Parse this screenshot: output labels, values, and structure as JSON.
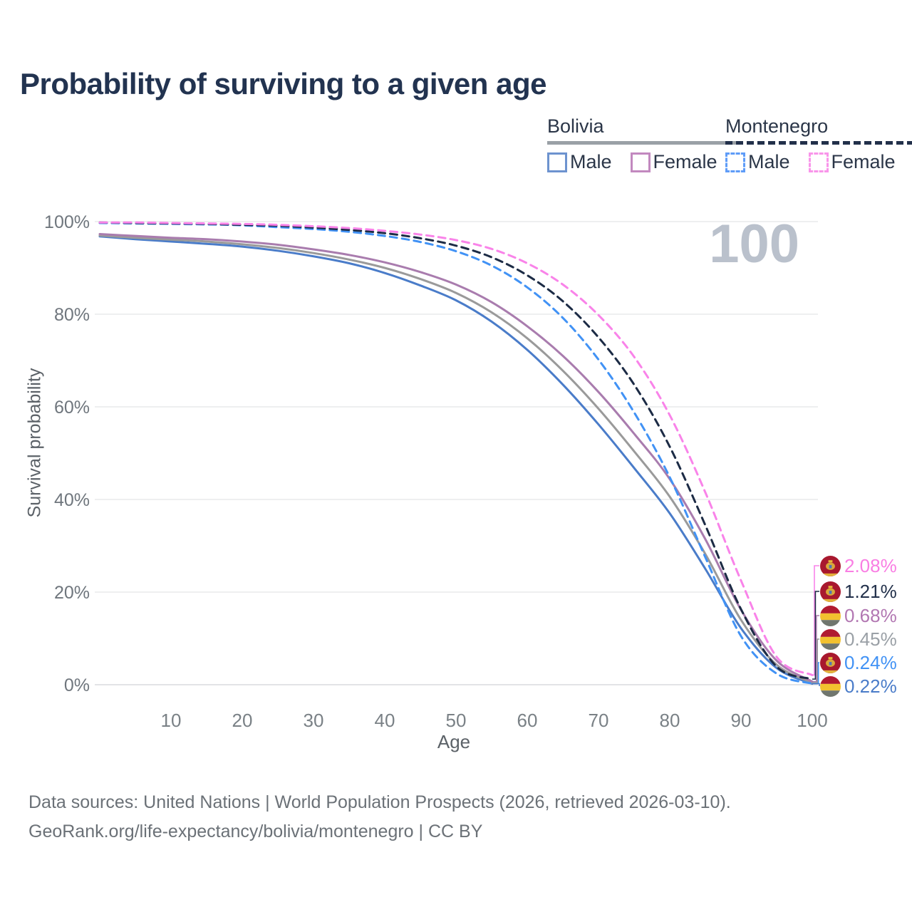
{
  "title": "Probability of surviving to a given age",
  "watermark": "100",
  "legend": {
    "groups": [
      {
        "label": "Bolivia",
        "line_style": "solid",
        "underline_color": "#9aa0a6",
        "items": [
          {
            "label": "Male",
            "color": "#6d93cf"
          },
          {
            "label": "Female",
            "color": "#c289bf"
          }
        ]
      },
      {
        "label": "Montenegro",
        "line_style": "dashed",
        "underline_color": "#22304a",
        "items": [
          {
            "label": "Male",
            "color": "#5e9cf8"
          },
          {
            "label": "Female",
            "color": "#f995ea"
          }
        ]
      }
    ]
  },
  "footer": {
    "line1": "Data sources: United Nations | World Population Prospects (2026, retrieved 2026-03-10).",
    "line2": "GeoRank.org/life-expectancy/bolivia/montenegro | CC BY"
  },
  "chart_data": {
    "type": "line",
    "title": "Probability of surviving to a given age",
    "xlabel": "Age",
    "ylabel": "Survival probability",
    "xlim": [
      0,
      100
    ],
    "ylim": [
      0,
      100
    ],
    "x_ticks": [
      10,
      20,
      30,
      40,
      50,
      60,
      70,
      80,
      90,
      100
    ],
    "y_ticks": [
      0,
      20,
      40,
      60,
      80,
      100
    ],
    "y_tick_suffix": "%",
    "grid": "horizontal",
    "legend_position": "top-right",
    "hover_age": 100,
    "ages": [
      0,
      5,
      10,
      15,
      20,
      25,
      30,
      35,
      40,
      45,
      50,
      55,
      60,
      65,
      70,
      75,
      80,
      85,
      90,
      95,
      100
    ],
    "series": [
      {
        "name": "Bolivia Male",
        "country": "Bolivia",
        "sex": "Male",
        "line_style": "solid",
        "color": "#4a7cc9",
        "flag": "bolivia",
        "end_label": "0.22%",
        "end_label_color": "#4a7cc9",
        "values": [
          96.8,
          96.2,
          95.7,
          95.2,
          94.6,
          93.7,
          92.5,
          91.0,
          88.9,
          86.2,
          83.0,
          78.4,
          72.3,
          64.8,
          56.2,
          46.8,
          37.0,
          25.0,
          12.2,
          3.6,
          0.22
        ]
      },
      {
        "name": "Bolivia (both sexes)",
        "country": "Bolivia",
        "sex": "All",
        "line_style": "solid",
        "color": "#9a9a9a",
        "flag": "bolivia",
        "end_label": "0.45%",
        "end_label_color": "#9aa0a6",
        "values": [
          97.0,
          96.5,
          96.1,
          95.7,
          95.1,
          94.3,
          93.2,
          91.8,
          90.0,
          87.6,
          84.6,
          80.4,
          74.8,
          67.8,
          59.6,
          50.4,
          40.6,
          28.2,
          14.0,
          4.3,
          0.45
        ]
      },
      {
        "name": "Bolivia Female",
        "country": "Bolivia",
        "sex": "Female",
        "line_style": "solid",
        "color": "#a97cae",
        "flag": "bolivia",
        "end_label": "0.68%",
        "end_label_color": "#b277b2",
        "values": [
          97.3,
          96.9,
          96.5,
          96.2,
          95.7,
          95.0,
          94.0,
          92.8,
          91.2,
          89.1,
          86.4,
          82.6,
          77.4,
          71.0,
          63.2,
          54.2,
          44.4,
          31.4,
          16.2,
          5.2,
          0.68
        ]
      },
      {
        "name": "Montenegro Male",
        "country": "Montenegro",
        "sex": "Male",
        "line_style": "dashed",
        "color": "#4192f5",
        "flag": "montenegro",
        "end_label": "0.24%",
        "end_label_color": "#4192f5",
        "values": [
          99.7,
          99.6,
          99.5,
          99.4,
          99.2,
          98.8,
          98.4,
          97.8,
          96.9,
          95.6,
          93.6,
          90.5,
          85.8,
          79.2,
          70.2,
          58.8,
          44.8,
          27.5,
          10.5,
          2.4,
          0.24
        ]
      },
      {
        "name": "Montenegro (both sexes)",
        "country": "Montenegro",
        "sex": "All",
        "line_style": "dashed",
        "color": "#1c2b45",
        "flag": "montenegro",
        "end_label": "1.21%",
        "end_label_color": "#22304a",
        "values": [
          99.8,
          99.7,
          99.6,
          99.5,
          99.3,
          99.1,
          98.7,
          98.2,
          97.5,
          96.4,
          94.8,
          92.3,
          88.4,
          82.8,
          75.0,
          64.8,
          51.4,
          34.4,
          16.3,
          3.9,
          1.21
        ]
      },
      {
        "name": "Montenegro Female",
        "country": "Montenegro",
        "sex": "Female",
        "line_style": "dashed",
        "color": "#f983e9",
        "flag": "montenegro",
        "end_label": "2.08%",
        "end_label_color": "#f97ee3",
        "values": [
          99.8,
          99.8,
          99.7,
          99.6,
          99.5,
          99.3,
          99.0,
          98.6,
          98.0,
          97.2,
          96.0,
          94.1,
          91.0,
          86.4,
          79.8,
          70.8,
          58.2,
          41.5,
          22.5,
          6.0,
          2.08
        ]
      }
    ]
  }
}
